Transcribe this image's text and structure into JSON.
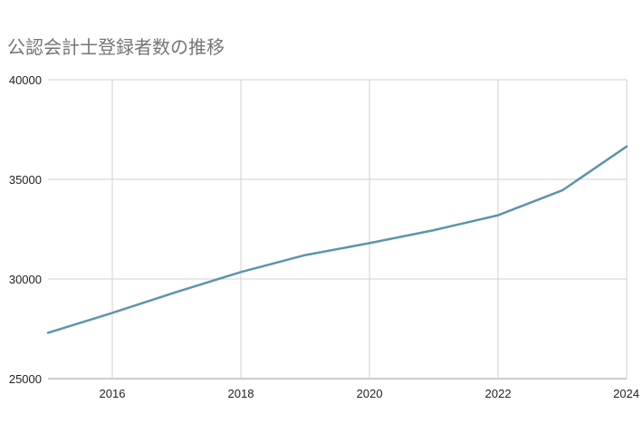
{
  "chart_data": {
    "type": "line",
    "title": "公認会計士登録者数の推移",
    "xlabel": "",
    "ylabel": "",
    "xlim": [
      2015,
      2024
    ],
    "ylim": [
      25000,
      40000
    ],
    "x_ticks": [
      2016,
      2018,
      2020,
      2022,
      2024
    ],
    "y_ticks": [
      25000,
      30000,
      35000,
      40000
    ],
    "x_tick_labels": [
      "2016",
      "2018",
      "2020",
      "2022",
      "2024"
    ],
    "y_tick_labels": [
      "25000",
      "30000",
      "35000",
      "40000"
    ],
    "grid": true,
    "legend": "none",
    "series": [
      {
        "color": "#5b95ae",
        "x": [
          2015,
          2016,
          2017,
          2018,
          2019,
          2020,
          2021,
          2022,
          2023,
          2024
        ],
        "y": [
          27300,
          28300,
          29350,
          30350,
          31200,
          31800,
          32450,
          33200,
          34450,
          36650
        ]
      }
    ]
  }
}
